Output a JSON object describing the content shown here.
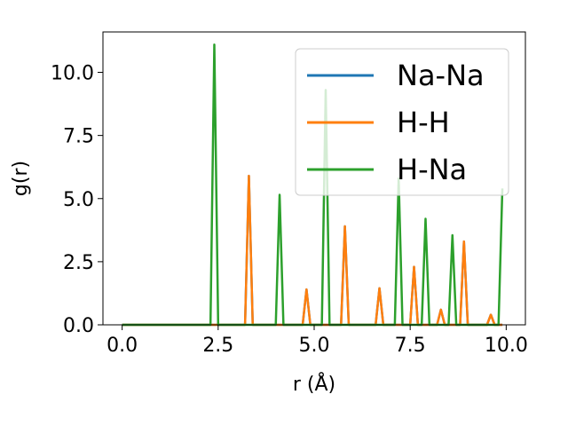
{
  "chart_data": {
    "type": "line",
    "title": "",
    "xlabel": "r (Å)",
    "ylabel": "g(r)",
    "xlim": [
      -0.5,
      10.5
    ],
    "ylim": [
      0,
      11.6
    ],
    "xticks": [
      0.0,
      2.5,
      5.0,
      7.5,
      10.0
    ],
    "xtick_labels": [
      "0.0",
      "2.5",
      "5.0",
      "7.5",
      "10.0"
    ],
    "yticks": [
      0.0,
      2.5,
      5.0,
      7.5,
      10.0
    ],
    "ytick_labels": [
      "0.0",
      "2.5",
      "5.0",
      "7.5",
      "10.0"
    ],
    "grid": false,
    "legend_position": "top-right",
    "series": [
      {
        "name": "Na-Na",
        "color": "#1f77b4",
        "x": [
          0.0,
          2.3,
          2.4,
          2.5,
          3.2,
          3.3,
          3.4,
          4.0,
          4.1,
          4.2,
          4.7,
          4.8,
          4.9,
          5.2,
          5.3,
          5.4,
          5.7,
          5.8,
          5.9,
          6.6,
          6.7,
          6.8,
          7.1,
          7.2,
          7.3,
          7.5,
          7.6,
          7.7,
          7.8,
          7.9,
          8.0,
          8.2,
          8.3,
          8.4,
          8.5,
          8.6,
          8.7,
          8.8,
          8.9,
          9.0,
          9.5,
          9.6,
          9.7,
          9.8,
          9.9
        ],
        "y": [
          0,
          0,
          0,
          0,
          0,
          5.9,
          0,
          0,
          0,
          0,
          0,
          1.4,
          0,
          0,
          0,
          0,
          0,
          3.9,
          0,
          0,
          1.45,
          0,
          0,
          0,
          0,
          0,
          2.3,
          0,
          0,
          0,
          0,
          0,
          0.6,
          0,
          0,
          0,
          0,
          0,
          3.3,
          0,
          0,
          0.4,
          0,
          0,
          0
        ]
      },
      {
        "name": "H-H",
        "color": "#ff7f0e",
        "x": [
          0.0,
          2.3,
          2.4,
          2.5,
          3.2,
          3.3,
          3.4,
          4.0,
          4.1,
          4.2,
          4.7,
          4.8,
          4.9,
          5.2,
          5.3,
          5.4,
          5.7,
          5.8,
          5.9,
          6.6,
          6.7,
          6.8,
          7.1,
          7.2,
          7.3,
          7.5,
          7.6,
          7.7,
          7.8,
          7.9,
          8.0,
          8.2,
          8.3,
          8.4,
          8.5,
          8.6,
          8.7,
          8.8,
          8.9,
          9.0,
          9.5,
          9.6,
          9.7,
          9.8,
          9.9
        ],
        "y": [
          0,
          0,
          0,
          0,
          0,
          5.9,
          0,
          0,
          0,
          0,
          0,
          1.4,
          0,
          0,
          0,
          0,
          0,
          3.9,
          0,
          0,
          1.45,
          0,
          0,
          0,
          0,
          0,
          2.3,
          0,
          0,
          0,
          0,
          0,
          0.6,
          0,
          0,
          0,
          0,
          0,
          3.3,
          0,
          0,
          0.4,
          0,
          0,
          0
        ]
      },
      {
        "name": "H-Na",
        "color": "#2ca02c",
        "x": [
          0.0,
          2.3,
          2.4,
          2.5,
          3.2,
          3.3,
          3.4,
          4.0,
          4.1,
          4.2,
          4.7,
          4.8,
          4.9,
          5.2,
          5.3,
          5.4,
          5.7,
          5.8,
          5.9,
          6.6,
          6.7,
          6.8,
          7.1,
          7.2,
          7.3,
          7.5,
          7.6,
          7.7,
          7.8,
          7.9,
          8.0,
          8.2,
          8.3,
          8.4,
          8.5,
          8.6,
          8.7,
          8.8,
          8.9,
          9.0,
          9.5,
          9.6,
          9.7,
          9.8,
          9.9
        ],
        "y": [
          0,
          0,
          11.1,
          0,
          0,
          0,
          0,
          0,
          5.15,
          0,
          0,
          0,
          0,
          0,
          9.3,
          0,
          0,
          0,
          0,
          0,
          0,
          0,
          0,
          5.8,
          0,
          0,
          0,
          0,
          0,
          4.2,
          0,
          0,
          0,
          0,
          0,
          3.55,
          0,
          0,
          0,
          0,
          0,
          0,
          0,
          0,
          5.4
        ]
      }
    ]
  }
}
